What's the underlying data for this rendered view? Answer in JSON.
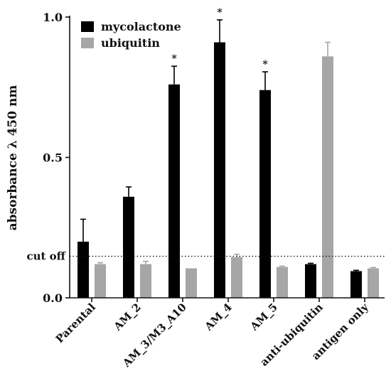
{
  "chart_data": {
    "type": "bar",
    "ylabel": "absorbance λ 450 nm",
    "xlabel": "",
    "ylim": [
      0,
      1.0
    ],
    "yticks": [
      {
        "value": 0,
        "label": "0.0"
      },
      {
        "value": 0.5,
        "label": "0.5"
      },
      {
        "value": 1.0,
        "label": "1.0"
      }
    ],
    "categories": [
      "Parental",
      "AM_2",
      "AM_3/M3_A10",
      "AM_4",
      "AM_5",
      "anti-ubiquitin",
      "antigen only"
    ],
    "series": [
      {
        "name": "mycolactone",
        "color": "#000000",
        "values": [
          0.2,
          0.36,
          0.76,
          0.91,
          0.74,
          0.12,
          0.095
        ],
        "errors": [
          0.08,
          0.035,
          0.065,
          0.08,
          0.065,
          0.003,
          0.003
        ]
      },
      {
        "name": "ubiquitin",
        "color": "#a6a6a6",
        "values": [
          0.12,
          0.12,
          0.105,
          0.145,
          0.11,
          0.86,
          0.105
        ],
        "errors": [
          0.005,
          0.01,
          0.0,
          0.01,
          0.003,
          0.05,
          0.003
        ]
      }
    ],
    "significance": [
      {
        "category": "AM_3/M3_A10",
        "series": "mycolactone",
        "label": "*"
      },
      {
        "category": "AM_4",
        "series": "mycolactone",
        "label": "*"
      },
      {
        "category": "AM_5",
        "series": "mycolactone",
        "label": "*"
      }
    ],
    "reference_line": {
      "value": 0.148,
      "label": "cut off",
      "style": "dotted"
    },
    "legend": {
      "placement": "top-left"
    }
  }
}
